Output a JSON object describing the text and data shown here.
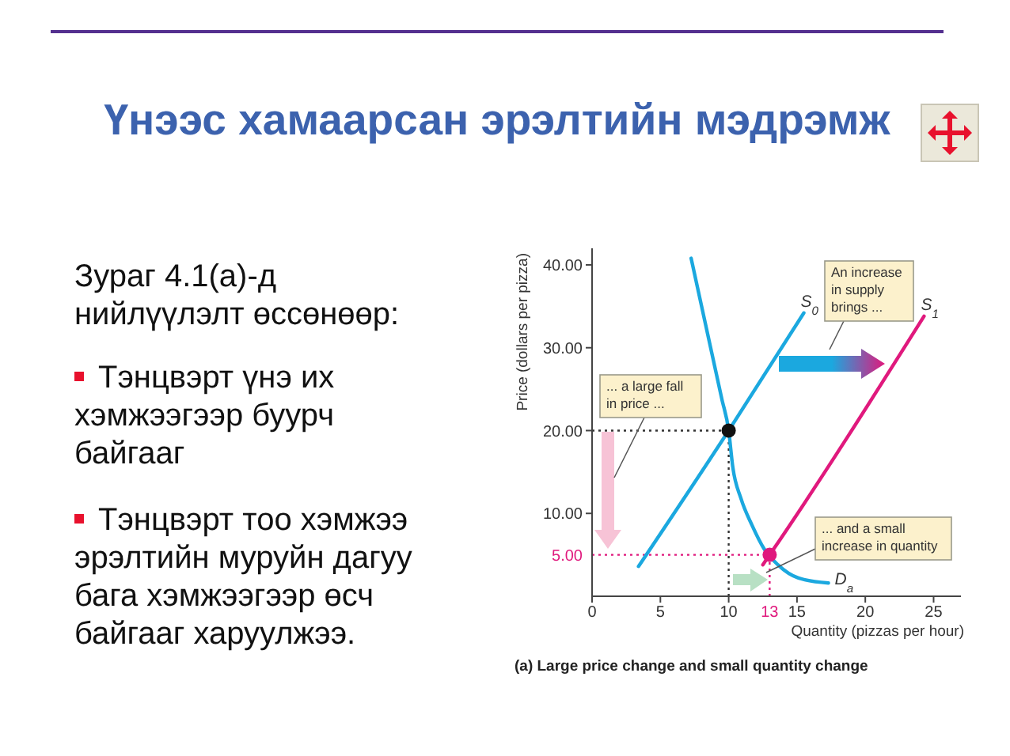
{
  "chart_data": {
    "type": "line",
    "title": "Үнээс хамаарсан эрэлтийн мэдрэмж",
    "xlabel": "Quantity (pizzas per hour)",
    "ylabel": "Price (dollars per pizza)",
    "xlim": [
      0,
      27
    ],
    "ylim": [
      0,
      42
    ],
    "xticks": [
      0,
      5,
      10,
      15,
      20,
      25
    ],
    "yticks": [
      {
        "value": 10,
        "label": "10.00"
      },
      {
        "value": 20,
        "label": "20.00"
      },
      {
        "value": 30,
        "label": "30.00"
      },
      {
        "value": 40,
        "label": "40.00"
      }
    ],
    "marker": "none",
    "series": [
      {
        "name": "S$_{0}$",
        "color": "#1ba8df",
        "x": [
          3.4,
          10,
          15.5
        ],
        "values": [
          3.6,
          20,
          34.2
        ]
      },
      {
        "name": "S$_{1}$",
        "color": "#e0197d",
        "x": [
          12.5,
          13,
          24.3
        ],
        "values": [
          3.8,
          5,
          33.8
        ]
      },
      {
        "name": "D$_{a}$",
        "color": "#1ba8df",
        "x": [
          7.25,
          8.6,
          9.5,
          10,
          10.3,
          10.9,
          11.7,
          12.6,
          13.6,
          15.1,
          17.3
        ],
        "values": [
          40.8,
          30.6,
          23.8,
          20,
          15.6,
          11.8,
          8.6,
          5.7,
          3.8,
          2.2,
          1.6
        ]
      },
      {
        "type": "scatter",
        "color": "#111111",
        "marker": "circle",
        "x": [
          10
        ],
        "values": [
          20
        ]
      },
      {
        "type": "scatter",
        "color": "#e0197d",
        "marker": "circle",
        "x": [
          13
        ],
        "values": [
          5
        ]
      }
    ],
    "ref_lines": [
      {
        "axis": "y",
        "value": 20,
        "color": "#333333",
        "line_style": "dotted"
      },
      {
        "axis": "x",
        "value": 10,
        "color": "#333333",
        "line_style": "dotted"
      },
      {
        "axis": "y",
        "value": 5,
        "label": "5.00",
        "color": "#e0197d",
        "line_style": "dotted"
      },
      {
        "axis": "x",
        "value": 13,
        "label": "13",
        "color": "#e0197d",
        "line_style": "dotted"
      }
    ],
    "annotations": [
      "An increase in supply brings ...",
      "... a large fall in price ...",
      "... and a small increase in quantity",
      "(a) Large price change and small quantity change",
      "Зураг 4.1(а)-д нийлүүлэлт өссөнөөр:",
      "Тэнцвэрт үнэ их хэмжээгээр буурч байгааг",
      "Тэнцвэрт тоо хэмжээ эрэлтийн муруйн дагуу бага хэмжээгээр өсч байгааг харуулжээ."
    ]
  }
}
